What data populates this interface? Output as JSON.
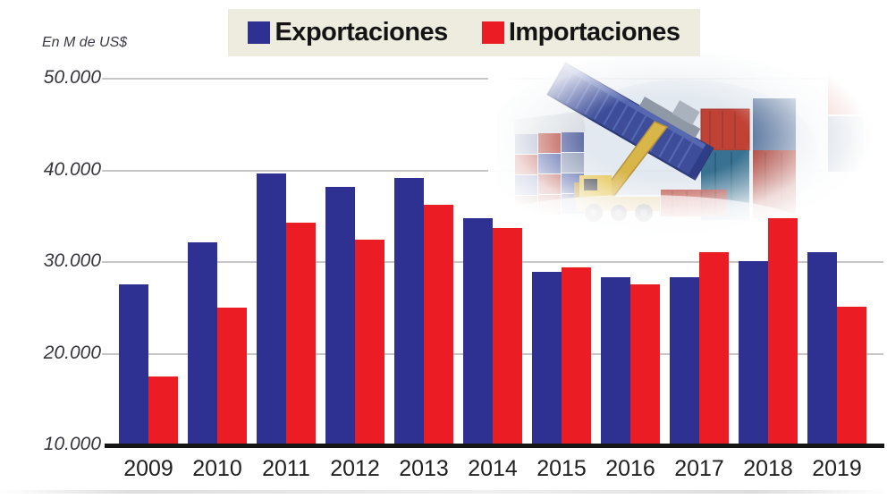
{
  "legend": {
    "background": "#edecdf",
    "items": [
      {
        "label": "Exportaciones",
        "color": "#2e3192"
      },
      {
        "label": "Importaciones",
        "color": "#ec1c24"
      }
    ]
  },
  "chart_data": {
    "type": "bar",
    "categories": [
      "2009",
      "2010",
      "2011",
      "2012",
      "2013",
      "2014",
      "2015",
      "2016",
      "2017",
      "2018",
      "2019"
    ],
    "series": [
      {
        "name": "Exportaciones",
        "color": "#2e3192",
        "values": [
          27600,
          32100,
          39700,
          38200,
          39200,
          34800,
          28900,
          28300,
          28300,
          30100,
          31100
        ]
      },
      {
        "name": "Importaciones",
        "color": "#ec1c24",
        "values": [
          17500,
          25000,
          34300,
          32400,
          36200,
          33700,
          29400,
          27600,
          31100,
          34800,
          25100
        ]
      }
    ],
    "title": "",
    "xlabel": "",
    "ylabel": "En M de US$",
    "ylim": [
      10000,
      50000
    ],
    "yticks": [
      {
        "label": "50.000",
        "value": 50000
      },
      {
        "label": "40.000",
        "value": 40000
      },
      {
        "label": "30.000",
        "value": 30000
      },
      {
        "label": "20.000",
        "value": 20000
      },
      {
        "label": "10.000",
        "value": 10000
      }
    ],
    "grid": true,
    "legend_position": "top"
  }
}
